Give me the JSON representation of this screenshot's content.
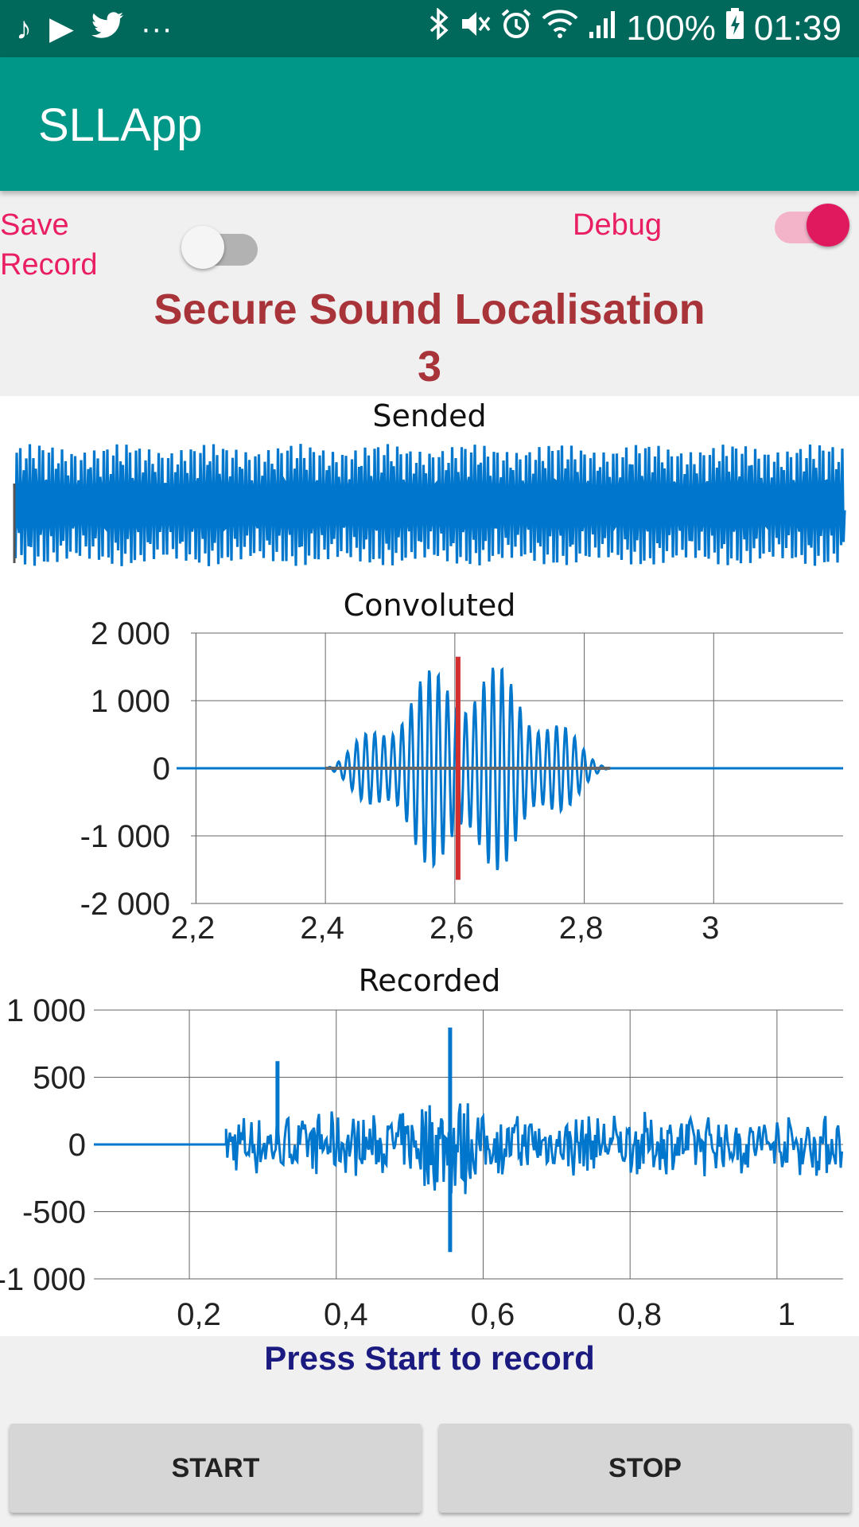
{
  "status_bar": {
    "battery": "100%",
    "time": "01:39",
    "left_icons": [
      "music-note-icon",
      "play-store-icon",
      "twitter-icon",
      "more-dots-icon"
    ],
    "right_icons": [
      "bluetooth-icon",
      "mute-icon",
      "alarm-icon",
      "wifi-icon",
      "signal-icon",
      "battery-charging-icon"
    ]
  },
  "app_bar": {
    "title": "SLLApp",
    "color": "#009688"
  },
  "controls": {
    "save_record_line1": "Save",
    "save_record_line2": "Record",
    "save_record_on": false,
    "debug_label": "Debug",
    "debug_on": true,
    "accent": "#e91e63"
  },
  "header": {
    "title": "Secure Sound Localisation",
    "value": "3"
  },
  "chart_data": [
    {
      "type": "line",
      "title": "Sended",
      "description_series": "dense modulated sinusoid filling full amplitude",
      "y_range": [
        -1,
        1
      ],
      "axes_visible": false,
      "series_color": "#0077cc"
    },
    {
      "type": "line",
      "title": "Convoluted",
      "x_ticks": [
        "2,2",
        "2,4",
        "2,6",
        "2,8",
        "3"
      ],
      "y_ticks": [
        "2 000",
        "1 000",
        "0",
        "-1 000",
        "-2 000"
      ],
      "xlim": [
        2.17,
        3.2
      ],
      "ylim": [
        -2000,
        2000
      ],
      "envelope": {
        "start": 2.4,
        "end": 2.84,
        "peak": 1650,
        "peak_at": 2.62
      },
      "marker_x": 2.605,
      "marker_color": "#d32f2f",
      "series_color": "#0077cc",
      "grid": true
    },
    {
      "type": "line",
      "title": "Recorded",
      "x_ticks": [
        "0,2",
        "0,4",
        "0,6",
        "0,8",
        "1"
      ],
      "y_ticks": [
        "1 000",
        "500",
        "0",
        "-500",
        "-1 000"
      ],
      "xlim": [
        0.07,
        1.09
      ],
      "ylim": [
        -1000,
        1000
      ],
      "signal_start": 0.25,
      "noise_amplitude": 250,
      "spikes": [
        {
          "x": 0.32,
          "y": 620
        },
        {
          "x": 0.555,
          "y": 870
        },
        {
          "x": 0.555,
          "y": -800
        }
      ],
      "series_color": "#0077cc",
      "grid": true
    }
  ],
  "status_message": "Press Start to record",
  "buttons": {
    "start": "START",
    "stop": "STOP"
  }
}
